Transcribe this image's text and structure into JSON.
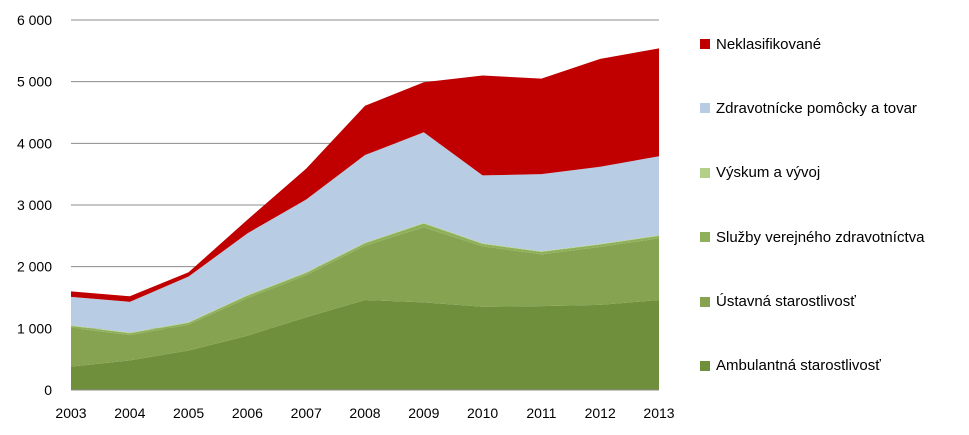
{
  "chart_data": {
    "type": "area",
    "stacked": true,
    "x": [
      "2003",
      "2004",
      "2005",
      "2006",
      "2007",
      "2008",
      "2009",
      "2010",
      "2011",
      "2012",
      "2013"
    ],
    "ylim": [
      0,
      6000
    ],
    "yticks": [
      "0",
      "1 000",
      "2 000",
      "3 000",
      "4 000",
      "5 000",
      "6 000"
    ],
    "ytick_values": [
      0,
      1000,
      2000,
      3000,
      4000,
      5000,
      6000
    ],
    "grid": "horizontal",
    "legend_position": "right",
    "series": [
      {
        "name": "Ambulantná starostlivosť",
        "color": "#6f8f3d",
        "values": [
          380,
          480,
          640,
          880,
          1180,
          1460,
          1420,
          1350,
          1360,
          1380,
          1460
        ]
      },
      {
        "name": "Ústavná starostlivosť",
        "color": "#86a351",
        "values": [
          630,
          410,
          420,
          610,
          680,
          880,
          1220,
          980,
          840,
          940,
          1000
        ]
      },
      {
        "name": "Služby verejného zdravotníctva",
        "color": "#8fb05a",
        "values": [
          30,
          30,
          30,
          40,
          40,
          40,
          60,
          40,
          40,
          40,
          40
        ]
      },
      {
        "name": "Výskum a vývoj",
        "color": "#b3cf88",
        "values": [
          10,
          10,
          10,
          10,
          10,
          10,
          10,
          10,
          10,
          10,
          10
        ]
      },
      {
        "name": "Zdravotnícke pomôcky a tovar",
        "color": "#b8cce4",
        "values": [
          460,
          500,
          740,
          1000,
          1180,
          1420,
          1470,
          1100,
          1250,
          1250,
          1280
        ]
      },
      {
        "name": "Neklasifikované",
        "color": "#c00000",
        "values": [
          90,
          90,
          70,
          220,
          500,
          800,
          810,
          1620,
          1550,
          1750,
          1750
        ]
      }
    ]
  }
}
